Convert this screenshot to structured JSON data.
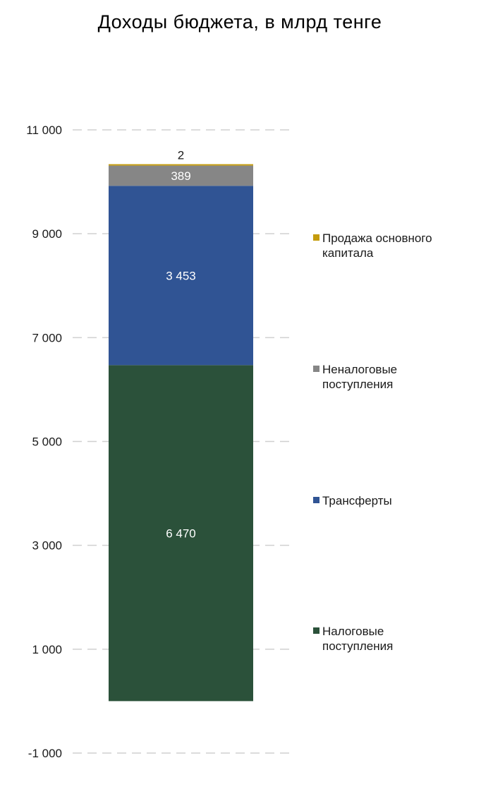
{
  "chart_data": {
    "type": "bar",
    "stacked": true,
    "title": "Доходы бюджета, в млрд тенге",
    "xlabel": "",
    "ylabel": "",
    "ylim": [
      -1000,
      11000
    ],
    "y_ticks": [
      -1000,
      1000,
      3000,
      5000,
      7000,
      9000,
      11000
    ],
    "y_tick_labels": [
      "-1 000",
      "1 000",
      "3 000",
      "5 000",
      "7 000",
      "9 000",
      "11 000"
    ],
    "grid": "dashed horizontal",
    "categories": [
      ""
    ],
    "series": [
      {
        "name": "Налоговые поступления",
        "values": [
          6470
        ],
        "label": "6 470",
        "color": "#2b513a",
        "label_color": "#ffffff"
      },
      {
        "name": "Трансферты",
        "values": [
          3453
        ],
        "label": "3 453",
        "color": "#305494",
        "label_color": "#ffffff"
      },
      {
        "name": "Неналоговые поступления",
        "values": [
          389
        ],
        "label": "389",
        "color": "#868686",
        "label_color": "#ffffff"
      },
      {
        "name": "Продажа основного капитала",
        "values": [
          2
        ],
        "label": "2",
        "color": "#c49b0c",
        "label_color": "#1a1a1a"
      }
    ],
    "legend": [
      {
        "lines": [
          "Продажа основного",
          "капитала"
        ],
        "color": "#c49b0c"
      },
      {
        "lines": [
          "Неналоговые",
          "поступления"
        ],
        "color": "#868686"
      },
      {
        "lines": [
          "Трансферты"
        ],
        "color": "#305494"
      },
      {
        "lines": [
          "Налоговые",
          "поступления"
        ],
        "color": "#2b513a"
      }
    ],
    "legend_position": "right"
  }
}
